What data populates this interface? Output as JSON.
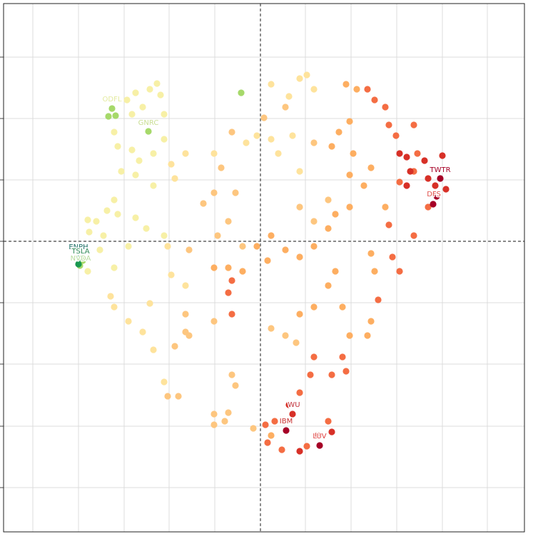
{
  "chart_data": {
    "type": "scatter",
    "xlim": [
      -360,
      370
    ],
    "ylim": [
      -407,
      333
    ],
    "xticks": [
      -319,
      -255,
      -191,
      -128,
      -64,
      0,
      63,
      127,
      191,
      255,
      318
    ],
    "yticks": [
      258,
      172,
      86,
      0,
      -86,
      -172,
      -259,
      -345
    ],
    "grid": true,
    "zero_lines": true,
    "series": [
      {
        "color": "#a6d96a",
        "x": [
          -157,
          -208,
          -213,
          -203,
          -253,
          -249,
          -27
        ],
        "values": [
          154,
          186,
          175,
          176,
          -34,
          -27,
          208
        ]
      },
      {
        "color": "#1a9850",
        "x": [
          -253,
          -255
        ],
        "values": [
          -24,
          -32
        ]
      },
      {
        "color": "#f7f0a6",
        "x": [
          -145,
          -155,
          -140,
          -175,
          -187,
          -180,
          -165,
          -135,
          -205,
          -200,
          -180,
          -170,
          -135,
          -150,
          -195,
          -175,
          -150,
          -205,
          -215,
          -200,
          -230,
          -240,
          -220,
          -175,
          -160,
          -185,
          -225,
          -242,
          -242,
          -205,
          -135
        ],
        "values": [
          221,
          213,
          205,
          208,
          198,
          178,
          188,
          178,
          153,
          133,
          128,
          113,
          143,
          123,
          98,
          93,
          78,
          58,
          43,
          38,
          28,
          13,
          8,
          33,
          18,
          -7,
          -12,
          -42,
          30,
          -37,
          8
        ]
      },
      {
        "color": "#fee39c",
        "x": [
          15,
          55,
          65,
          75,
          40,
          -5,
          -20,
          -65,
          15,
          45,
          25,
          55,
          -125,
          -105,
          -120,
          -130,
          -210,
          -205,
          -185,
          -155,
          -165,
          -150,
          -125,
          -105,
          -135
        ],
        "values": [
          220,
          228,
          233,
          213,
          203,
          148,
          138,
          123,
          143,
          148,
          123,
          98,
          108,
          123,
          88,
          -7,
          -77,
          -92,
          -112,
          -87,
          -127,
          -152,
          -47,
          -62,
          -197
        ]
      },
      {
        "color": "#fdc67f",
        "x": [
          -40,
          -55,
          -35,
          -65,
          -80,
          -45,
          -60,
          -25,
          -100,
          -105,
          -65,
          -105,
          -120,
          -100,
          -130,
          -115,
          -40,
          -35,
          -65,
          -50,
          -65,
          -45,
          75,
          55,
          75,
          95,
          35,
          5,
          15,
          35,
          50,
          -10
        ],
        "values": [
          153,
          103,
          68,
          68,
          53,
          28,
          8,
          -7,
          -12,
          -102,
          -112,
          -127,
          -147,
          -132,
          -217,
          -217,
          -187,
          -202,
          -242,
          -252,
          -257,
          -240,
          138,
          48,
          28,
          58,
          188,
          173,
          -122,
          -132,
          -142,
          -262
        ]
      },
      {
        "color": "#fdae61",
        "x": [
          120,
          135,
          125,
          110,
          100,
          130,
          125,
          155,
          145,
          125,
          105,
          95,
          75,
          55,
          35,
          15,
          10,
          -5,
          -25,
          -45,
          -65,
          55,
          75,
          95,
          105,
          115,
          125,
          15,
          155,
          160,
          155,
          150,
          175
        ],
        "values": [
          220,
          213,
          168,
          153,
          133,
          123,
          93,
          103,
          78,
          48,
          38,
          18,
          -7,
          -22,
          -12,
          8,
          -27,
          -7,
          -42,
          -37,
          -37,
          -102,
          -92,
          -62,
          -42,
          -92,
          -132,
          -272,
          -17,
          -42,
          -112,
          -132,
          48
        ]
      },
      {
        "color": "#f46d43",
        "x": [
          150,
          160,
          175,
          180,
          190,
          215,
          220,
          215,
          195,
          180,
          185,
          195,
          165,
          115,
          120,
          100,
          75,
          70,
          95,
          65,
          30,
          10,
          7,
          20,
          55,
          -40,
          -45,
          -40,
          215,
          235
        ],
        "values": [
          213,
          198,
          188,
          163,
          148,
          163,
          123,
          98,
          83,
          23,
          -22,
          -42,
          -82,
          -162,
          -182,
          -187,
          -162,
          -187,
          -252,
          -287,
          -292,
          -282,
          -257,
          -252,
          -212,
          -102,
          -72,
          -55,
          8,
          48
        ]
      },
      {
        "color": "#d73027",
        "x": [
          195,
          205,
          210,
          230,
          235,
          245,
          260,
          255,
          205,
          45,
          55,
          80,
          100,
          40
        ],
        "values": [
          123,
          118,
          98,
          113,
          88,
          78,
          73,
          120,
          78,
          -242,
          -294,
          -272,
          -267,
          -229
        ]
      },
      {
        "color": "#a50026",
        "x": [
          252,
          247,
          242,
          36,
          83
        ],
        "values": [
          88,
          63,
          52,
          -265,
          -286
        ]
      }
    ],
    "annotations": [
      {
        "text": "ODFL",
        "x": -208,
        "y": 199,
        "color": "#e4eba0"
      },
      {
        "text": "GNRC",
        "x": -157,
        "y": 166,
        "color": "#c9de94"
      },
      {
        "text": "ENPH",
        "x": -255,
        "y": -8,
        "color": "#1d6f66"
      },
      {
        "text": "TSLA",
        "x": -252,
        "y": -14,
        "color": "#2f8a57"
      },
      {
        "text": "NVDA",
        "x": -252,
        "y": -24,
        "color": "#b8dca0"
      },
      {
        "text": "TWTR",
        "x": 252,
        "y": 100,
        "color": "#a50026"
      },
      {
        "text": "DFS",
        "x": 243,
        "y": 66,
        "color": "#e0504a"
      },
      {
        "text": "WU",
        "x": 47,
        "y": -229,
        "color": "#c0303a"
      },
      {
        "text": "IBM",
        "x": 36,
        "y": -252,
        "color": "#c83030"
      },
      {
        "text": "LUV",
        "x": 83,
        "y": -273,
        "color": "#e04040"
      }
    ]
  }
}
